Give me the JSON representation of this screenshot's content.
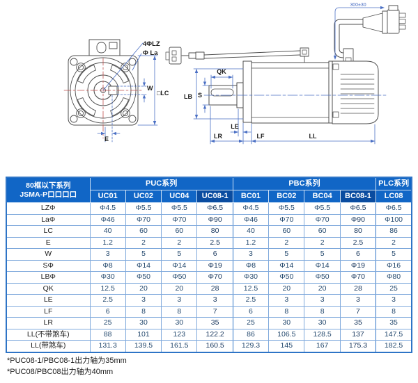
{
  "diagram": {
    "front_view": {
      "bolt_holes_label": "4ΦLZ",
      "pilot_dia_label": "Φ La",
      "key_width_label": "W",
      "frame_size_label": "□LC",
      "e_label": "E"
    },
    "side_view": {
      "key_length_label": "QK",
      "pilot_label": "LB",
      "shaft_dia_label": "S",
      "le_label": "LE",
      "lr_label": "LR",
      "lf_label": "LF",
      "ll_label": "LL",
      "cable_length_label": "300±30"
    }
  },
  "table": {
    "corner_header": {
      "line1": "80框以下系列",
      "line2": "JSMA-P口口口口"
    },
    "groups": [
      {
        "label": "PUC系列",
        "span": "4"
      },
      {
        "label": "PBC系列",
        "span": "4"
      },
      {
        "label": "PLC系列",
        "span": "1"
      }
    ],
    "columns": [
      "UC01",
      "UC02",
      "UC04",
      "UC08-1",
      "BC01",
      "BC02",
      "BC04",
      "BC08-1",
      "LC08"
    ],
    "highlight_columns": [
      3,
      7
    ],
    "rows": [
      {
        "label": "LZΦ",
        "values": [
          "Φ4.5",
          "Φ5.5",
          "Φ5.5",
          "Φ6.5",
          "Φ4.5",
          "Φ5.5",
          "Φ5.5",
          "Φ6.5",
          "Φ6.5"
        ]
      },
      {
        "label": "LaΦ",
        "values": [
          "Φ46",
          "Φ70",
          "Φ70",
          "Φ90",
          "Φ46",
          "Φ70",
          "Φ70",
          "Φ90",
          "Φ100"
        ]
      },
      {
        "label": "LC",
        "values": [
          "40",
          "60",
          "60",
          "80",
          "40",
          "60",
          "60",
          "80",
          "86"
        ]
      },
      {
        "label": "E",
        "values": [
          "1.2",
          "2",
          "2",
          "2.5",
          "1.2",
          "2",
          "2",
          "2.5",
          "2"
        ]
      },
      {
        "label": "W",
        "values": [
          "3",
          "5",
          "5",
          "6",
          "3",
          "5",
          "5",
          "6",
          "5"
        ]
      },
      {
        "label": "SΦ",
        "values": [
          "Φ8",
          "Φ14",
          "Φ14",
          "Φ19",
          "Φ8",
          "Φ14",
          "Φ14",
          "Φ19",
          "Φ16"
        ]
      },
      {
        "label": "LBΦ",
        "values": [
          "Φ30",
          "Φ50",
          "Φ50",
          "Φ70",
          "Φ30",
          "Φ50",
          "Φ50",
          "Φ70",
          "Φ80"
        ]
      },
      {
        "label": "QK",
        "values": [
          "12.5",
          "20",
          "20",
          "28",
          "12.5",
          "20",
          "20",
          "28",
          "25"
        ]
      },
      {
        "label": "LE",
        "values": [
          "2.5",
          "3",
          "3",
          "3",
          "2.5",
          "3",
          "3",
          "3",
          "3"
        ]
      },
      {
        "label": "LF",
        "values": [
          "6",
          "8",
          "8",
          "7",
          "6",
          "8",
          "8",
          "7",
          "8"
        ]
      },
      {
        "label": "LR",
        "values": [
          "25",
          "30",
          "30",
          "35",
          "25",
          "30",
          "30",
          "35",
          "35"
        ]
      },
      {
        "label": "LL(不带煞车)",
        "values": [
          "88",
          "101",
          "123",
          "122.2",
          "86",
          "106.5",
          "128.5",
          "137",
          "147.5"
        ]
      },
      {
        "label": "LL(带煞车)",
        "values": [
          "131.3",
          "139.5",
          "161.5",
          "160.5",
          "129.3",
          "145",
          "167",
          "175.3",
          "182.5"
        ]
      }
    ]
  },
  "footnotes": [
    "*PUC08-1/PBC08-1出力轴为35mm",
    "*PUC08/PBC08出力轴为40mm"
  ],
  "colors": {
    "header_blue": "#1166c6",
    "header_dark_blue": "#0a4ca0",
    "grid_blue": "#7fa9dc",
    "outer_border_blue": "#2e74c6",
    "value_text": "#24496e",
    "dimension_blue": "#4a6fc4",
    "centerline_red": "#c0504d",
    "outline_gray": "#4e4e4e"
  }
}
